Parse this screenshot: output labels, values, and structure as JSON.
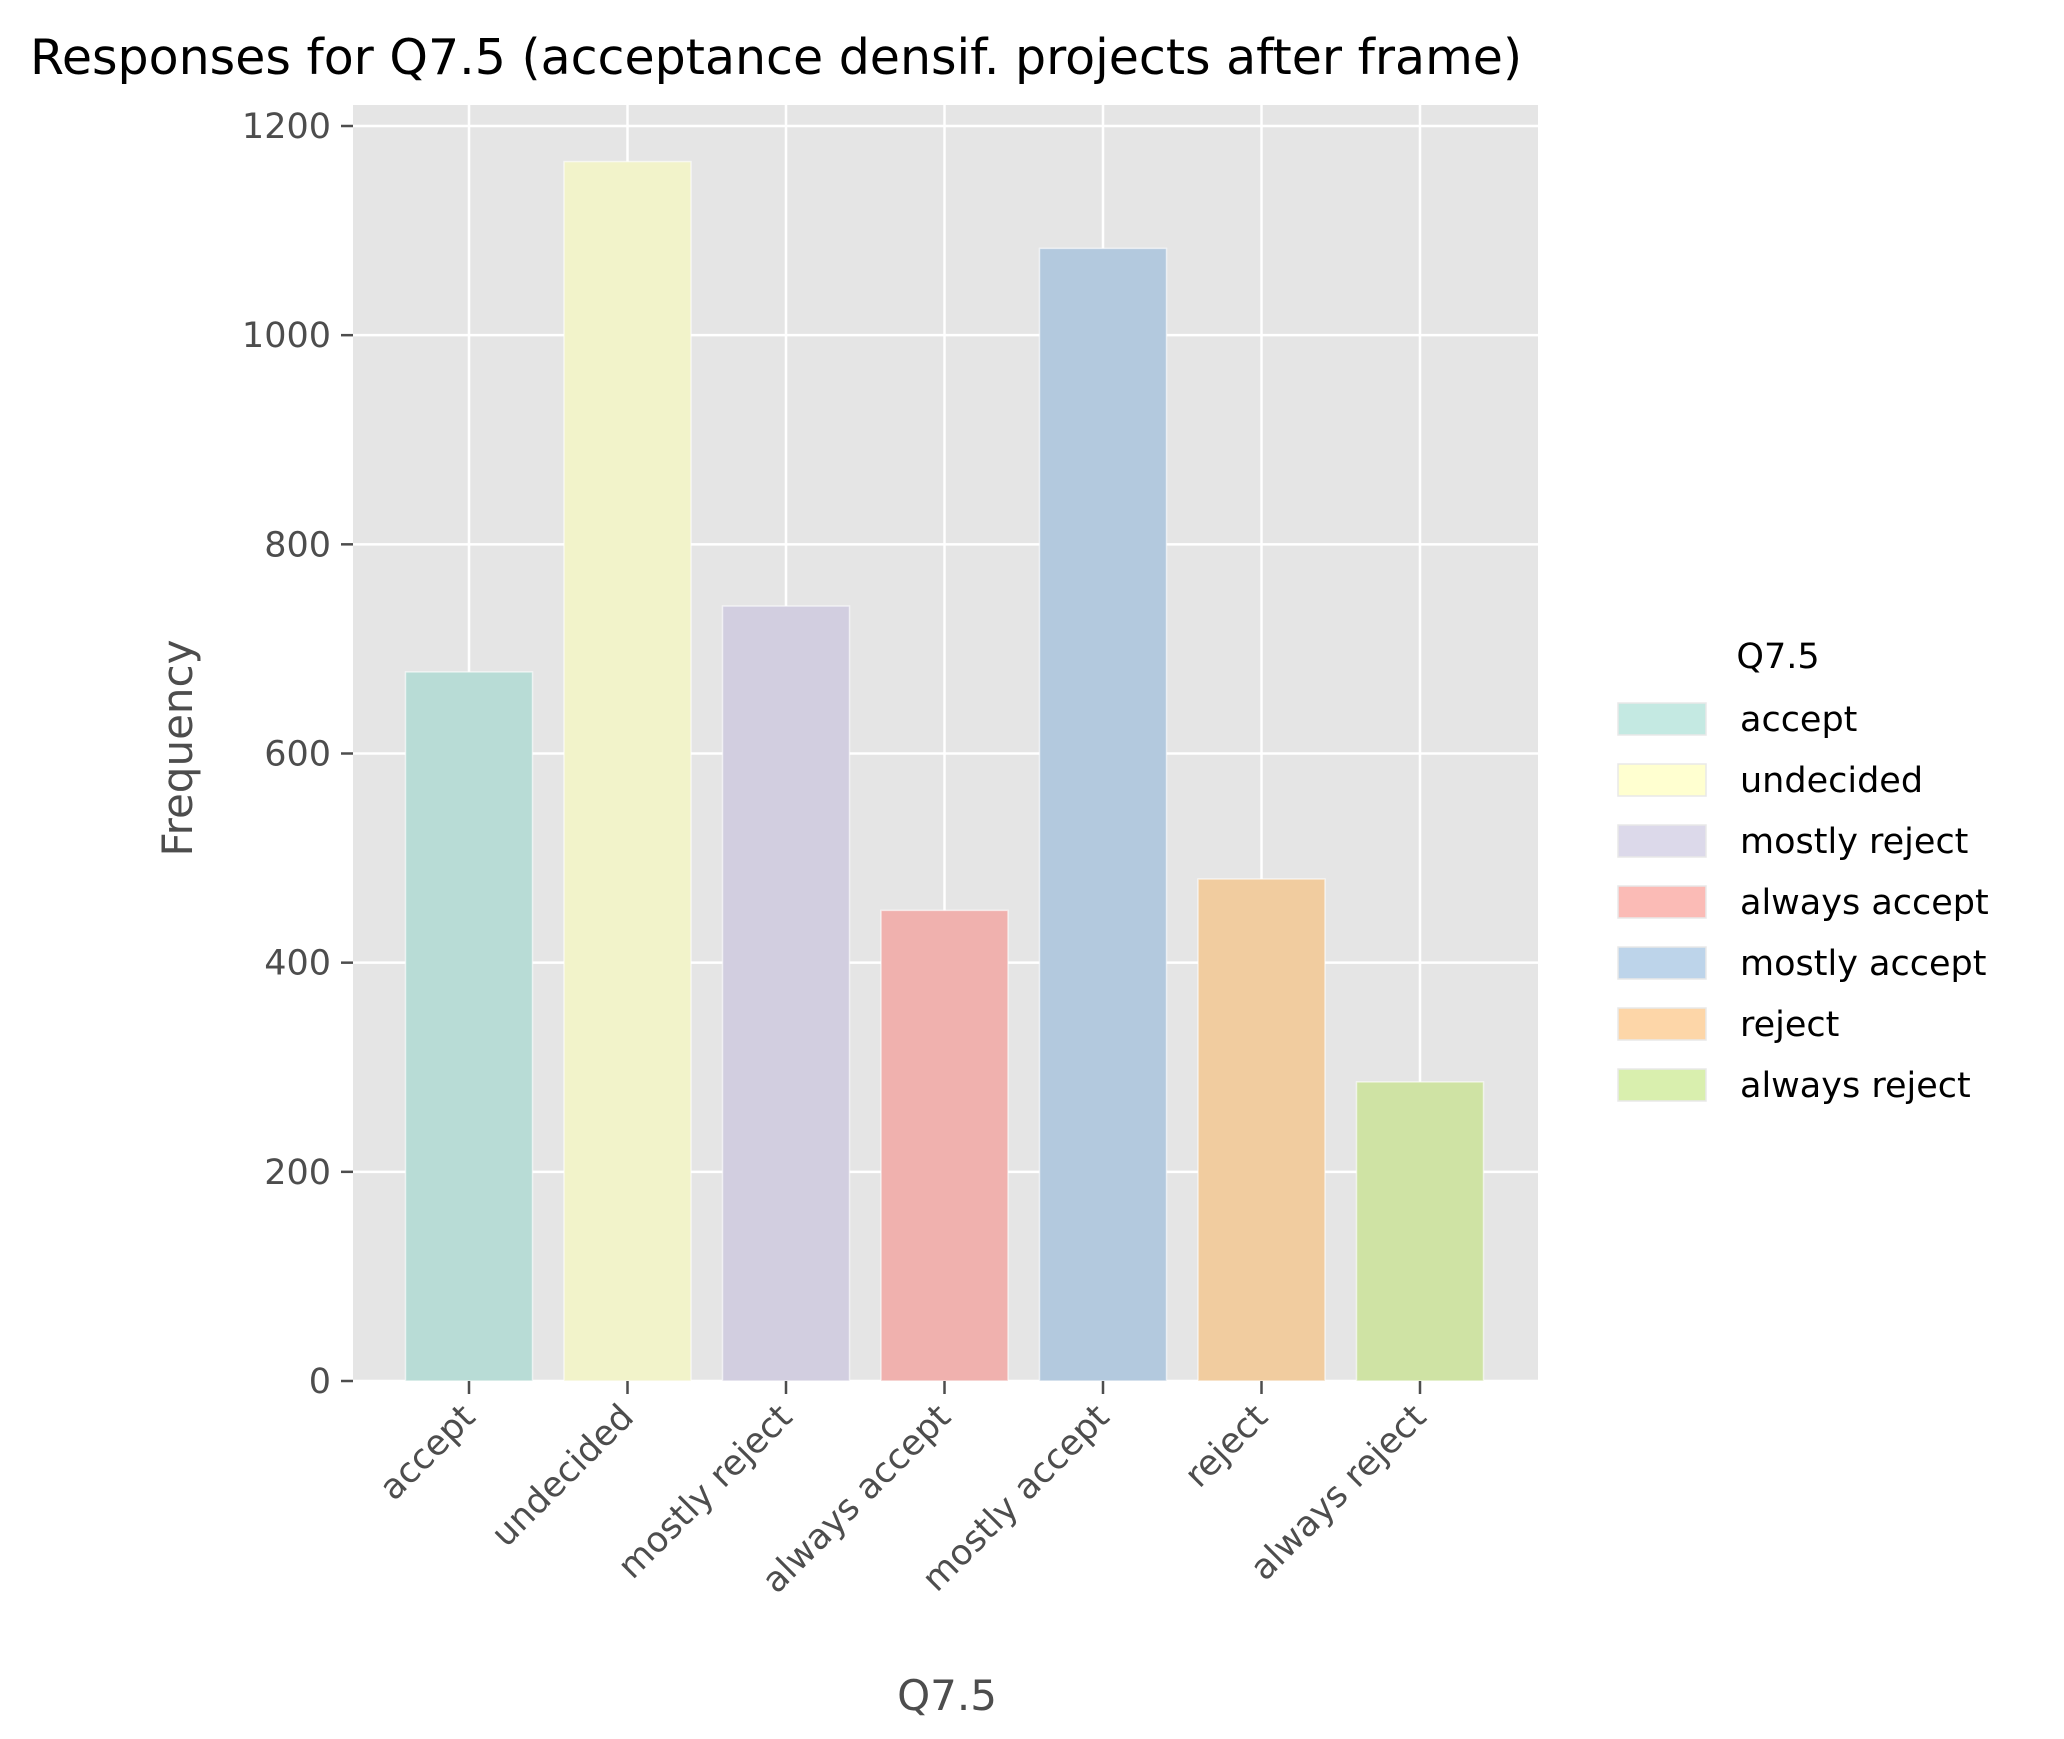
{
  "chart_data": {
    "type": "bar",
    "title": "Responses for Q7.5 (acceptance densif. projects after frame)",
    "xlabel": "Q7.5",
    "ylabel": "Frequency",
    "categories": [
      "accept",
      "undecided",
      "mostly reject",
      "always accept",
      "mostly accept",
      "reject",
      "always reject"
    ],
    "values": [
      678,
      1166,
      741,
      450,
      1083,
      480,
      286
    ],
    "colors": [
      "#b8dcd6",
      "#f2f3ca",
      "#d2cee0",
      "#f0b1ae",
      "#b3c9de",
      "#f1cc9f",
      "#cfe3a4"
    ],
    "legend_colors": [
      "#c4e9e2",
      "#ffffd0",
      "#dcd9ea",
      "#fbbbb6",
      "#bdd4ea",
      "#fdd6a8",
      "#d9efae"
    ],
    "ylim": [
      0,
      1200
    ],
    "yticks": [
      0,
      200,
      400,
      600,
      800,
      1000,
      1200
    ],
    "grid": true,
    "legend": {
      "title": "Q7.5",
      "position": "right"
    },
    "background": "#e5e5e5"
  }
}
